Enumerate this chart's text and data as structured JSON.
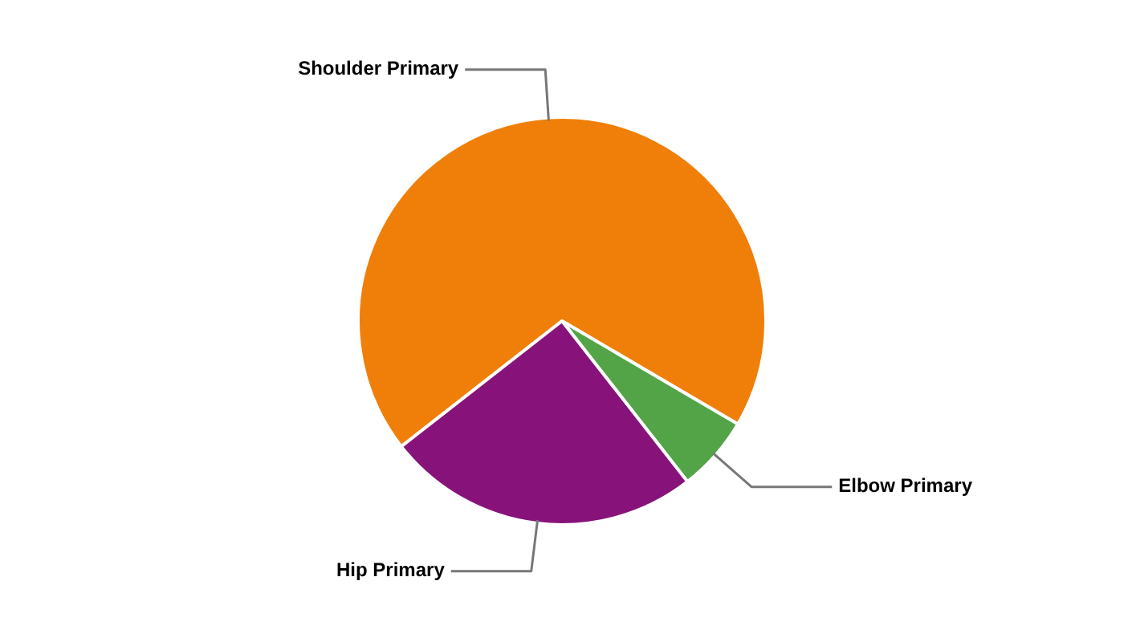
{
  "chart_data": {
    "type": "pie",
    "categories": [
      "Shoulder Primary",
      "Elbow Primary",
      "Hip Primary"
    ],
    "values": [
      69,
      6,
      25
    ],
    "colors": [
      "#f07f09",
      "#52a447",
      "#871279"
    ],
    "legend": false
  }
}
